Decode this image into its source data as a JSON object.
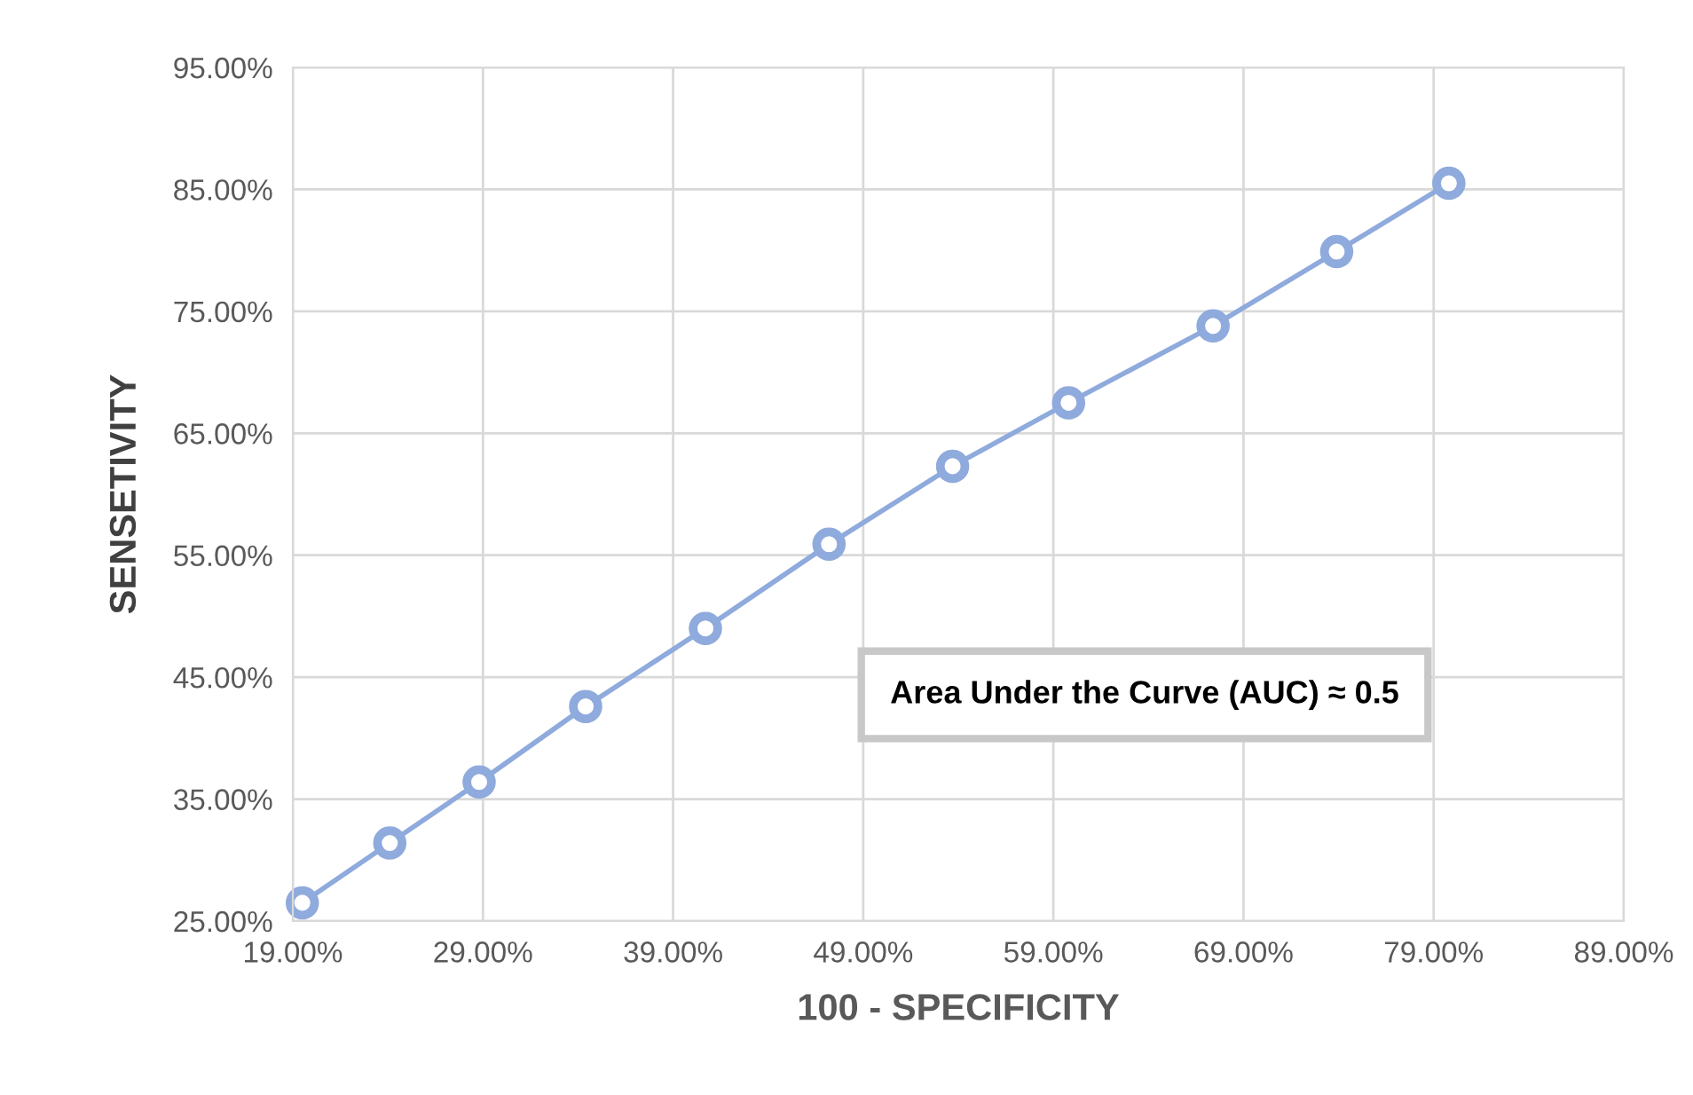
{
  "chart_data": {
    "type": "line",
    "xlabel": "100 - SPECIFICITY",
    "ylabel": "SENSETIVITY",
    "x": [
      19.5,
      24.1,
      28.8,
      34.4,
      40.7,
      47.2,
      53.7,
      59.8,
      67.4,
      73.9,
      79.8
    ],
    "series": [
      {
        "color": "#8faadc",
        "values": [
          26.5,
          31.4,
          36.4,
          42.6,
          49.0,
          55.9,
          62.3,
          67.5,
          73.8,
          79.9,
          85.5
        ]
      }
    ],
    "xlim": [
      19,
      89
    ],
    "ylim": [
      25,
      95
    ],
    "xticks": [
      {
        "value": 19,
        "label": "19.00%"
      },
      {
        "value": 29,
        "label": "29.00%"
      },
      {
        "value": 39,
        "label": "39.00%"
      },
      {
        "value": 49,
        "label": "49.00%"
      },
      {
        "value": 59,
        "label": "59.00%"
      },
      {
        "value": 69,
        "label": "69.00%"
      },
      {
        "value": 79,
        "label": "79.00%"
      },
      {
        "value": 89,
        "label": "89.00%"
      }
    ],
    "yticks": [
      {
        "value": 25,
        "label": "25.00%"
      },
      {
        "value": 35,
        "label": "35.00%"
      },
      {
        "value": 45,
        "label": "45.00%"
      },
      {
        "value": 55,
        "label": "55.00%"
      },
      {
        "value": 65,
        "label": "65.00%"
      },
      {
        "value": 75,
        "label": "75.00%"
      },
      {
        "value": 85,
        "label": "85.00%"
      },
      {
        "value": 95,
        "label": "95.00%"
      }
    ],
    "grid": true,
    "marker": "circle",
    "line_style": "solid",
    "annotations": [
      "Area Under the Curve (AUC) ≈ 0.5"
    ]
  }
}
